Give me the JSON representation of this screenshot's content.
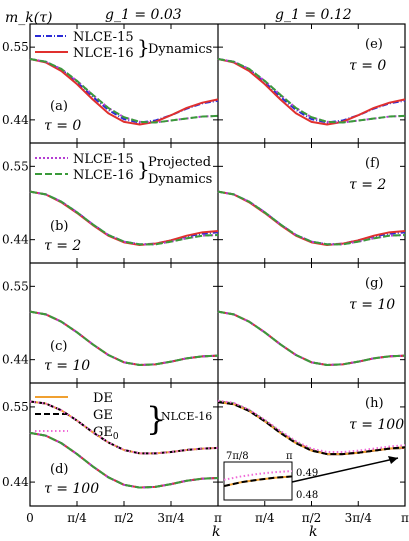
{
  "chart_data": {
    "type": "line",
    "ylabel": "m_k(τ)",
    "xlabel": "k",
    "column_titles": [
      "g_1 = 0.03",
      "g_1 = 0.12"
    ],
    "x_ticks": [
      "0",
      "π/4",
      "π/2",
      "3π/4",
      "π"
    ],
    "y_ticks": [
      "0.55",
      "0.44"
    ],
    "x_range": [
      0,
      3.14159
    ],
    "y_range": [
      0.405,
      0.585
    ],
    "legend_groups": [
      {
        "entries": [
          "NLCE-15",
          "NLCE-16"
        ],
        "brace_label": "Dynamics"
      },
      {
        "entries": [
          "NLCE-15",
          "NLCE-16"
        ],
        "brace_label": "Projected Dynamics"
      },
      {
        "entries": [
          "DE",
          "GE",
          "GE_0"
        ],
        "brace_label": "NLCE-16"
      }
    ],
    "series_colors": {
      "dyn15": "#2b2bd6",
      "dyn16": "#e0302e",
      "proj15": "#b43dd3",
      "proj16": "#3a9a3a",
      "de": "#f0a030",
      "ge": "#000000",
      "ge0": "#f06ad8"
    },
    "panels": [
      {
        "label": "(a)",
        "tau": "τ = 0",
        "col": 0,
        "row": 0,
        "series": [
          {
            "name": "Dynamics NLCE-15",
            "color": "#2b2bd6",
            "dash": "6,2,1,2",
            "y": [
              0.532,
              0.528,
              0.516,
              0.497,
              0.475,
              0.455,
              0.441,
              0.436,
              0.439,
              0.447,
              0.457,
              0.465,
              0.469
            ]
          },
          {
            "name": "Dynamics NLCE-16",
            "color": "#e0302e",
            "dash": "",
            "y": [
              0.532,
              0.527,
              0.514,
              0.494,
              0.471,
              0.45,
              0.437,
              0.433,
              0.437,
              0.447,
              0.458,
              0.466,
              0.471
            ]
          },
          {
            "name": "Projected NLCE-15",
            "color": "#b43dd3",
            "dash": "2,2",
            "y": [
              0.532,
              0.528,
              0.517,
              0.499,
              0.478,
              0.458,
              0.444,
              0.437,
              0.436,
              0.439,
              0.442,
              0.445,
              0.446
            ]
          },
          {
            "name": "Projected NLCE-16",
            "color": "#3a9a3a",
            "dash": "7,3",
            "y": [
              0.532,
              0.528,
              0.517,
              0.499,
              0.478,
              0.458,
              0.444,
              0.437,
              0.436,
              0.439,
              0.442,
              0.445,
              0.446
            ]
          }
        ]
      },
      {
        "label": "(e)",
        "tau": "τ = 0",
        "col": 1,
        "row": 0,
        "series": [
          {
            "name": "Dynamics NLCE-15",
            "color": "#2b2bd6",
            "dash": "6,2,1,2",
            "y": [
              0.532,
              0.528,
              0.516,
              0.497,
              0.475,
              0.455,
              0.441,
              0.436,
              0.439,
              0.447,
              0.457,
              0.465,
              0.469
            ]
          },
          {
            "name": "Dynamics NLCE-16",
            "color": "#e0302e",
            "dash": "",
            "y": [
              0.532,
              0.527,
              0.514,
              0.494,
              0.471,
              0.45,
              0.437,
              0.433,
              0.437,
              0.447,
              0.458,
              0.466,
              0.471
            ]
          },
          {
            "name": "Projected NLCE-15",
            "color": "#b43dd3",
            "dash": "2,2",
            "y": [
              0.532,
              0.528,
              0.517,
              0.499,
              0.478,
              0.458,
              0.444,
              0.437,
              0.436,
              0.439,
              0.442,
              0.445,
              0.446
            ]
          },
          {
            "name": "Projected NLCE-16",
            "color": "#3a9a3a",
            "dash": "7,3",
            "y": [
              0.532,
              0.528,
              0.517,
              0.499,
              0.478,
              0.458,
              0.444,
              0.437,
              0.436,
              0.439,
              0.442,
              0.445,
              0.446
            ]
          }
        ]
      },
      {
        "label": "(b)",
        "tau": "τ = 2",
        "col": 0,
        "row": 1,
        "series": [
          {
            "name": "Dynamics NLCE-15",
            "color": "#2b2bd6",
            "dash": "6,2,1,2",
            "y": [
              0.512,
              0.508,
              0.497,
              0.481,
              0.463,
              0.447,
              0.437,
              0.433,
              0.434,
              0.439,
              0.445,
              0.449,
              0.451
            ]
          },
          {
            "name": "Dynamics NLCE-16",
            "color": "#e0302e",
            "dash": "",
            "y": [
              0.512,
              0.508,
              0.496,
              0.48,
              0.462,
              0.446,
              0.436,
              0.432,
              0.434,
              0.439,
              0.446,
              0.451,
              0.453
            ]
          },
          {
            "name": "Projected NLCE-15",
            "color": "#b43dd3",
            "dash": "2,2",
            "y": [
              0.512,
              0.508,
              0.497,
              0.481,
              0.463,
              0.447,
              0.437,
              0.433,
              0.433,
              0.437,
              0.442,
              0.446,
              0.447
            ]
          },
          {
            "name": "Projected NLCE-16",
            "color": "#3a9a3a",
            "dash": "7,3",
            "y": [
              0.512,
              0.508,
              0.497,
              0.481,
              0.463,
              0.447,
              0.437,
              0.433,
              0.433,
              0.437,
              0.442,
              0.446,
              0.447
            ]
          }
        ]
      },
      {
        "label": "(f)",
        "tau": "τ = 2",
        "col": 1,
        "row": 1,
        "series": [
          {
            "name": "Dynamics NLCE-15",
            "color": "#2b2bd6",
            "dash": "6,2,1,2",
            "y": [
              0.512,
              0.508,
              0.497,
              0.481,
              0.463,
              0.447,
              0.437,
              0.433,
              0.434,
              0.439,
              0.445,
              0.449,
              0.451
            ]
          },
          {
            "name": "Dynamics NLCE-16",
            "color": "#e0302e",
            "dash": "",
            "y": [
              0.512,
              0.508,
              0.496,
              0.48,
              0.462,
              0.446,
              0.436,
              0.432,
              0.434,
              0.439,
              0.446,
              0.451,
              0.453
            ]
          },
          {
            "name": "Projected NLCE-15",
            "color": "#b43dd3",
            "dash": "2,2",
            "y": [
              0.512,
              0.508,
              0.497,
              0.481,
              0.463,
              0.447,
              0.437,
              0.433,
              0.433,
              0.437,
              0.442,
              0.446,
              0.447
            ]
          },
          {
            "name": "Projected NLCE-16",
            "color": "#3a9a3a",
            "dash": "7,3",
            "y": [
              0.512,
              0.508,
              0.497,
              0.481,
              0.463,
              0.447,
              0.437,
              0.433,
              0.433,
              0.437,
              0.442,
              0.446,
              0.447
            ]
          }
        ]
      },
      {
        "label": "(c)",
        "tau": "τ = 10",
        "col": 0,
        "row": 2,
        "series": [
          {
            "name": "Dynamics NLCE-15",
            "color": "#2b2bd6",
            "dash": "6,2,1,2",
            "y": [
              0.512,
              0.508,
              0.497,
              0.481,
              0.463,
              0.447,
              0.436,
              0.432,
              0.433,
              0.437,
              0.442,
              0.445,
              0.446
            ]
          },
          {
            "name": "Dynamics NLCE-16",
            "color": "#e0302e",
            "dash": "",
            "y": [
              0.512,
              0.508,
              0.497,
              0.481,
              0.463,
              0.447,
              0.436,
              0.432,
              0.433,
              0.437,
              0.442,
              0.445,
              0.446
            ]
          },
          {
            "name": "Projected NLCE-15",
            "color": "#b43dd3",
            "dash": "2,2",
            "y": [
              0.512,
              0.508,
              0.497,
              0.481,
              0.463,
              0.447,
              0.436,
              0.432,
              0.433,
              0.437,
              0.442,
              0.445,
              0.446
            ]
          },
          {
            "name": "Projected NLCE-16",
            "color": "#3a9a3a",
            "dash": "7,3",
            "y": [
              0.512,
              0.508,
              0.497,
              0.481,
              0.463,
              0.447,
              0.436,
              0.432,
              0.433,
              0.437,
              0.442,
              0.445,
              0.446
            ]
          }
        ]
      },
      {
        "label": "(g)",
        "tau": "τ = 10",
        "col": 1,
        "row": 2,
        "series": [
          {
            "name": "Dynamics NLCE-15",
            "color": "#2b2bd6",
            "dash": "6,2,1,2",
            "y": [
              0.512,
              0.508,
              0.497,
              0.481,
              0.463,
              0.447,
              0.436,
              0.432,
              0.433,
              0.437,
              0.442,
              0.445,
              0.446
            ]
          },
          {
            "name": "Dynamics NLCE-16",
            "color": "#e0302e",
            "dash": "",
            "y": [
              0.512,
              0.508,
              0.497,
              0.481,
              0.463,
              0.447,
              0.436,
              0.432,
              0.433,
              0.437,
              0.442,
              0.445,
              0.446
            ]
          },
          {
            "name": "Projected NLCE-15",
            "color": "#b43dd3",
            "dash": "2,2",
            "y": [
              0.512,
              0.508,
              0.497,
              0.481,
              0.463,
              0.447,
              0.436,
              0.432,
              0.433,
              0.437,
              0.442,
              0.445,
              0.446
            ]
          },
          {
            "name": "Projected NLCE-16",
            "color": "#3a9a3a",
            "dash": "7,3",
            "y": [
              0.512,
              0.508,
              0.497,
              0.481,
              0.463,
              0.447,
              0.436,
              0.432,
              0.433,
              0.437,
              0.442,
              0.445,
              0.446
            ]
          }
        ]
      },
      {
        "label": "(d)",
        "tau": "τ = 100",
        "col": 0,
        "row": 3,
        "series": [
          {
            "name": "Dynamics NLCE-15",
            "color": "#2b2bd6",
            "dash": "6,2,1,2",
            "y": [
              0.512,
              0.508,
              0.497,
              0.481,
              0.463,
              0.447,
              0.436,
              0.432,
              0.433,
              0.437,
              0.442,
              0.445,
              0.446
            ]
          },
          {
            "name": "Dynamics NLCE-16",
            "color": "#e0302e",
            "dash": "",
            "y": [
              0.512,
              0.508,
              0.497,
              0.481,
              0.463,
              0.447,
              0.436,
              0.432,
              0.433,
              0.437,
              0.442,
              0.445,
              0.446
            ]
          },
          {
            "name": "Projected NLCE-15",
            "color": "#b43dd3",
            "dash": "2,2",
            "y": [
              0.512,
              0.508,
              0.497,
              0.481,
              0.463,
              0.447,
              0.436,
              0.432,
              0.433,
              0.437,
              0.442,
              0.445,
              0.446
            ]
          },
          {
            "name": "Projected NLCE-16",
            "color": "#3a9a3a",
            "dash": "7,3",
            "y": [
              0.512,
              0.508,
              0.497,
              0.481,
              0.463,
              0.447,
              0.436,
              0.432,
              0.433,
              0.437,
              0.442,
              0.445,
              0.446
            ]
          },
          {
            "name": "DE",
            "color": "#f0a030",
            "dash": "",
            "y": [
              0.558,
              0.555,
              0.545,
              0.53,
              0.513,
              0.498,
              0.487,
              0.482,
              0.482,
              0.484,
              0.487,
              0.489,
              0.49
            ]
          },
          {
            "name": "GE",
            "color": "#000000",
            "dash": "6,3",
            "y": [
              0.558,
              0.555,
              0.545,
              0.53,
              0.513,
              0.498,
              0.487,
              0.482,
              0.482,
              0.484,
              0.487,
              0.489,
              0.49
            ]
          },
          {
            "name": "GE0",
            "color": "#f06ad8",
            "dash": "1.5,2.5",
            "y": [
              0.558,
              0.555,
              0.545,
              0.53,
              0.513,
              0.498,
              0.487,
              0.482,
              0.482,
              0.484,
              0.487,
              0.489,
              0.49
            ]
          }
        ]
      },
      {
        "label": "(h)",
        "tau": "τ = 100",
        "col": 1,
        "row": 3,
        "series": [
          {
            "name": "Dynamics NLCE-15",
            "color": "#2b2bd6",
            "dash": "6,2,1,2",
            "y": [
              0.558,
              0.555,
              0.545,
              0.53,
              0.513,
              0.498,
              0.487,
              0.481,
              0.481,
              0.483,
              0.486,
              0.489,
              0.49
            ]
          },
          {
            "name": "Dynamics NLCE-16",
            "color": "#e0302e",
            "dash": "",
            "y": [
              0.558,
              0.555,
              0.545,
              0.53,
              0.513,
              0.498,
              0.487,
              0.481,
              0.481,
              0.483,
              0.486,
              0.489,
              0.49
            ]
          },
          {
            "name": "Projected NLCE-15",
            "color": "#b43dd3",
            "dash": "2,2",
            "y": [
              0.558,
              0.555,
              0.545,
              0.53,
              0.513,
              0.498,
              0.487,
              0.481,
              0.481,
              0.483,
              0.486,
              0.489,
              0.49
            ]
          },
          {
            "name": "Projected NLCE-16",
            "color": "#3a9a3a",
            "dash": "7,3",
            "y": [
              0.558,
              0.555,
              0.545,
              0.53,
              0.513,
              0.498,
              0.487,
              0.481,
              0.481,
              0.483,
              0.486,
              0.489,
              0.49
            ]
          },
          {
            "name": "DE",
            "color": "#f0a030",
            "dash": "",
            "y": [
              0.557,
              0.554,
              0.544,
              0.529,
              0.512,
              0.497,
              0.486,
              0.481,
              0.481,
              0.483,
              0.486,
              0.489,
              0.491
            ]
          },
          {
            "name": "GE",
            "color": "#000000",
            "dash": "6,3",
            "y": [
              0.557,
              0.554,
              0.544,
              0.529,
              0.512,
              0.497,
              0.486,
              0.481,
              0.481,
              0.483,
              0.486,
              0.489,
              0.491
            ]
          },
          {
            "name": "GE0",
            "color": "#f06ad8",
            "dash": "1.5,2.5",
            "y": [
              0.559,
              0.556,
              0.546,
              0.531,
              0.515,
              0.5,
              0.489,
              0.484,
              0.484,
              0.486,
              0.489,
              0.492,
              0.494
            ]
          }
        ]
      }
    ],
    "inset": {
      "x_labels": [
        "7π/8",
        "π"
      ],
      "y_labels": [
        "0.49",
        "0.48"
      ],
      "series": [
        {
          "name": "DE",
          "color": "#f0a030",
          "dash": "",
          "y": [
            0.4855,
            0.487,
            0.488,
            0.4888,
            0.4893
          ]
        },
        {
          "name": "GE",
          "color": "#000000",
          "dash": "6,3",
          "y": [
            0.4855,
            0.487,
            0.488,
            0.4888,
            0.4893
          ]
        },
        {
          "name": "GE0",
          "color": "#f06ad8",
          "dash": "1.5,2.5",
          "y": [
            0.488,
            0.4893,
            0.4903,
            0.491,
            0.4914
          ]
        }
      ],
      "y_range": [
        0.48,
        0.495
      ]
    }
  }
}
